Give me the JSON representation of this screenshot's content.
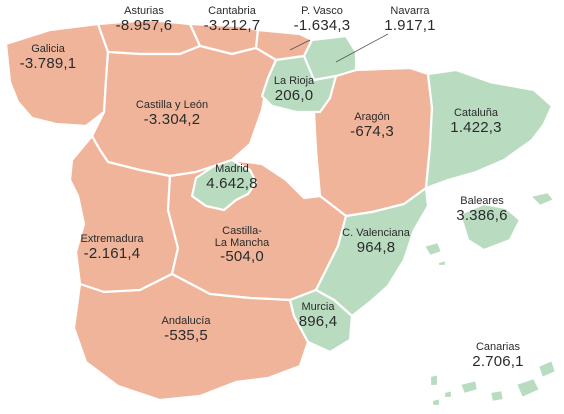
{
  "legend_colors": {
    "negative": "#f0b49a",
    "positive": "#b9dcc0"
  },
  "regions": {
    "galicia": {
      "name": "Galicia",
      "value": "-3.789,1"
    },
    "asturias": {
      "name": "Asturias",
      "value": "-8.957,6"
    },
    "cantabria": {
      "name": "Cantabria",
      "value": "-3.212,7"
    },
    "pvasco": {
      "name": "P. Vasco",
      "value": "-1.634,3"
    },
    "navarra": {
      "name": "Navarra",
      "value": "1.917,1"
    },
    "larioja": {
      "name": "La Rioja",
      "value": "206,0"
    },
    "aragon": {
      "name": "Aragón",
      "value": "-674,3"
    },
    "cataluna": {
      "name": "Cataluña",
      "value": "1.422,3"
    },
    "castillayleon": {
      "name": "Castilla y León",
      "value": "-3.304,2"
    },
    "madrid": {
      "name": "Madrid",
      "value": "4.642,8"
    },
    "baleares": {
      "name": "Baleares",
      "value": "3.386,6"
    },
    "extremadura": {
      "name": "Extremadura",
      "value": "-2.161,4"
    },
    "castillalamancha": {
      "name": "Castilla-\nLa Mancha",
      "value": "-504,0"
    },
    "cvalenciana": {
      "name": "C. Valenciana",
      "value": "964,8"
    },
    "murcia": {
      "name": "Murcia",
      "value": "896,4"
    },
    "andalucia": {
      "name": "Andalucía",
      "value": "-535,5"
    },
    "canarias": {
      "name": "Canarias",
      "value": "2.706,1"
    }
  }
}
